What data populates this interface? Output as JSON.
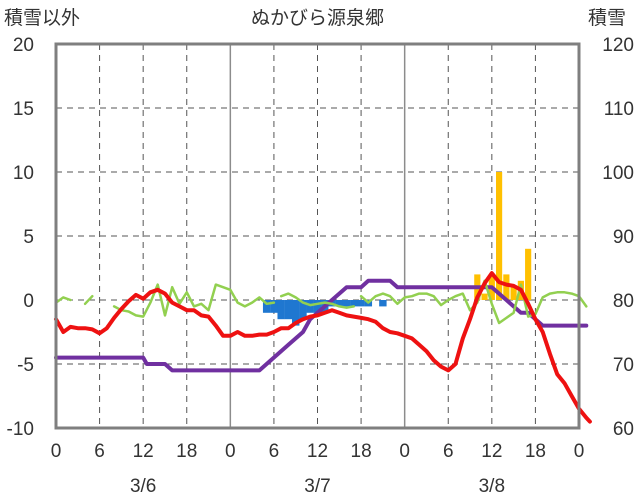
{
  "chart_data": {
    "type": "bar+line",
    "title": "ぬかびら源泉郷",
    "left_axis_label": "積雪以外",
    "right_axis_label": "積雪",
    "left_ylim": [
      -10,
      20
    ],
    "left_yticks": [
      "20",
      "15",
      "10",
      "5",
      "0",
      "-5",
      "-10"
    ],
    "right_ylim": [
      60,
      120
    ],
    "right_yticks": [
      "120",
      "110",
      "100",
      "90",
      "80",
      "70",
      "60"
    ],
    "x_range_hours": [
      0,
      72
    ],
    "x_tick_labels": [
      "0",
      "6",
      "12",
      "18",
      "0",
      "6",
      "12",
      "18",
      "0",
      "6",
      "12",
      "18",
      "0"
    ],
    "date_labels": [
      "3/6",
      "3/7",
      "3/8"
    ],
    "grid": true,
    "colors": {
      "temperature": "#ee1111",
      "wind": "#92d050",
      "snow_depth": "#7030a0",
      "precip_negative": "#1f77d0",
      "precip_positive": "#ffc000",
      "frame": "#7f7f7f",
      "grid": "#555555"
    },
    "series": [
      {
        "axis": "left",
        "kind": "line",
        "color_key": "temperature",
        "points": [
          [
            0,
            -1.5
          ],
          [
            1,
            -2.5
          ],
          [
            2,
            -2.1
          ],
          [
            3,
            -2.2
          ],
          [
            4,
            -2.2
          ],
          [
            5,
            -2.3
          ],
          [
            6,
            -2.6
          ],
          [
            7,
            -2.2
          ],
          [
            8,
            -1.4
          ],
          [
            9,
            -0.7
          ],
          [
            10,
            -0.1
          ],
          [
            11,
            0.4
          ],
          [
            12,
            0.1
          ],
          [
            13,
            0.6
          ],
          [
            14,
            0.8
          ],
          [
            15,
            0.5
          ],
          [
            16,
            -0.2
          ],
          [
            17,
            -0.5
          ],
          [
            18,
            -0.8
          ],
          [
            19,
            -0.8
          ],
          [
            20,
            -1.2
          ],
          [
            21,
            -1.3
          ],
          [
            22,
            -2.0
          ],
          [
            23,
            -2.8
          ],
          [
            24,
            -2.8
          ],
          [
            25,
            -2.5
          ],
          [
            26,
            -2.8
          ],
          [
            27,
            -2.8
          ],
          [
            28,
            -2.7
          ],
          [
            29,
            -2.7
          ],
          [
            30,
            -2.5
          ],
          [
            31,
            -2.2
          ],
          [
            32,
            -2.2
          ],
          [
            33,
            -1.8
          ],
          [
            34,
            -1.5
          ],
          [
            35,
            -1.3
          ],
          [
            36,
            -1.2
          ],
          [
            37,
            -1.0
          ],
          [
            38,
            -0.8
          ],
          [
            39,
            -1.0
          ],
          [
            40,
            -1.2
          ],
          [
            41,
            -1.3
          ],
          [
            42,
            -1.4
          ],
          [
            43,
            -1.5
          ],
          [
            44,
            -1.7
          ],
          [
            45,
            -2.2
          ],
          [
            46,
            -2.5
          ],
          [
            47,
            -2.6
          ],
          [
            48,
            -2.8
          ],
          [
            49,
            -3.0
          ],
          [
            50,
            -3.5
          ],
          [
            51,
            -4.0
          ],
          [
            52,
            -4.7
          ],
          [
            53,
            -5.2
          ],
          [
            54,
            -5.5
          ],
          [
            55,
            -5.0
          ],
          [
            56,
            -3.0
          ],
          [
            57,
            -1.5
          ],
          [
            58,
            0.2
          ],
          [
            59,
            1.3
          ],
          [
            60,
            2.1
          ],
          [
            61,
            1.4
          ],
          [
            62,
            1.2
          ],
          [
            63,
            1.1
          ],
          [
            64,
            0.8
          ],
          [
            65,
            -0.3
          ],
          [
            66,
            -1.5
          ],
          [
            67,
            -2.5
          ],
          [
            68,
            -4.2
          ],
          [
            69,
            -5.8
          ],
          [
            70,
            -6.5
          ],
          [
            71,
            -7.5
          ],
          [
            72,
            -8.5
          ],
          [
            73,
            -9.2
          ],
          [
            73.5,
            -9.5
          ]
        ]
      },
      {
        "axis": "left",
        "kind": "line",
        "color_key": "wind",
        "points": [
          [
            0,
            -0.2
          ],
          [
            1,
            0.2
          ],
          [
            2,
            0.0
          ],
          [
            null,
            null
          ],
          [
            4,
            -0.3
          ],
          [
            5,
            0.3
          ],
          [
            null,
            null
          ],
          [
            8,
            -0.5
          ],
          [
            9,
            -0.8
          ],
          [
            10,
            -0.9
          ],
          [
            11,
            -1.2
          ],
          [
            12,
            -1.3
          ],
          [
            13,
            -0.2
          ],
          [
            14,
            1.2
          ],
          [
            15,
            -1.2
          ],
          [
            16,
            1.0
          ],
          [
            17,
            -0.3
          ],
          [
            18,
            0.6
          ],
          [
            19,
            -0.5
          ],
          [
            20,
            -0.3
          ],
          [
            21,
            -0.8
          ],
          [
            22,
            1.2
          ],
          [
            23,
            1.0
          ],
          [
            24,
            0.8
          ],
          [
            25,
            -0.2
          ],
          [
            26,
            -0.5
          ],
          [
            27,
            -0.2
          ],
          [
            28,
            0.2
          ],
          [
            29,
            -0.3
          ],
          [
            30,
            -0.2
          ],
          [
            null,
            null
          ],
          [
            31,
            0.3
          ],
          [
            32,
            0.5
          ],
          [
            33,
            0.2
          ],
          [
            34,
            -0.2
          ],
          [
            35,
            -0.4
          ],
          [
            36,
            -0.3
          ],
          [
            37,
            -0.2
          ],
          [
            38,
            -0.3
          ],
          [
            39,
            -0.5
          ],
          [
            40,
            -0.6
          ],
          [
            41,
            -0.5
          ],
          [
            null,
            null
          ],
          [
            42,
            0.3
          ],
          [
            43,
            -0.2
          ],
          [
            44,
            0.3
          ],
          [
            45,
            0.5
          ],
          [
            46,
            0.3
          ],
          [
            47,
            -0.3
          ],
          [
            48,
            0.2
          ],
          [
            49,
            0.3
          ],
          [
            50,
            0.5
          ],
          [
            51,
            0.5
          ],
          [
            52,
            0.3
          ],
          [
            53,
            -0.4
          ],
          [
            54,
            0.0
          ],
          [
            55,
            0.3
          ],
          [
            56,
            0.5
          ],
          [
            57,
            -0.8
          ],
          [
            58,
            -0.2
          ],
          [
            59,
            1.5
          ],
          [
            60,
            -0.3
          ],
          [
            61,
            -1.8
          ],
          [
            62,
            -1.4
          ],
          [
            63,
            -1.0
          ],
          [
            64,
            1.2
          ],
          [
            65,
            -1.3
          ],
          [
            66,
            -1.1
          ],
          [
            67,
            0.2
          ],
          [
            68,
            0.5
          ],
          [
            69,
            0.6
          ],
          [
            70,
            0.6
          ],
          [
            71,
            0.5
          ],
          [
            72,
            0.3
          ],
          [
            73,
            -0.5
          ]
        ]
      },
      {
        "axis": "right",
        "kind": "line",
        "color_key": "snow_depth",
        "points": [
          [
            0,
            71
          ],
          [
            12,
            71
          ],
          [
            12.5,
            70
          ],
          [
            15,
            70
          ],
          [
            16,
            69
          ],
          [
            24,
            69
          ],
          [
            28,
            69
          ],
          [
            32,
            73
          ],
          [
            34,
            75
          ],
          [
            35,
            77
          ],
          [
            36,
            78
          ],
          [
            37,
            79
          ],
          [
            38,
            80
          ],
          [
            39,
            81
          ],
          [
            40,
            82
          ],
          [
            41,
            82
          ],
          [
            42,
            82
          ],
          [
            43,
            83
          ],
          [
            44,
            83
          ],
          [
            45,
            83
          ],
          [
            46,
            83
          ],
          [
            47,
            82
          ],
          [
            48,
            82
          ],
          [
            60,
            82
          ],
          [
            61,
            81
          ],
          [
            62,
            80
          ],
          [
            63,
            79
          ],
          [
            64,
            78
          ],
          [
            65,
            78
          ],
          [
            66,
            77
          ],
          [
            67,
            76
          ],
          [
            68,
            76
          ],
          [
            71,
            76
          ],
          [
            73,
            76
          ]
        ]
      },
      {
        "axis": "left",
        "kind": "bar",
        "color_key": "precip_negative",
        "bars": [
          [
            29,
            -1
          ],
          [
            30,
            -1
          ],
          [
            31,
            -1.5
          ],
          [
            32,
            -1.5
          ],
          [
            33,
            -2
          ],
          [
            34,
            -1.5
          ],
          [
            35,
            -1
          ],
          [
            36,
            -1
          ],
          [
            37,
            -1
          ],
          [
            38,
            -0.5
          ],
          [
            39,
            -0.5
          ],
          [
            40,
            -0.5
          ],
          [
            41,
            -0.5
          ],
          [
            42,
            -0.5
          ],
          [
            43,
            -0.5
          ],
          [
            45,
            -0.5
          ]
        ]
      },
      {
        "axis": "left",
        "kind": "bar",
        "color_key": "precip_positive",
        "bars": [
          [
            58,
            2
          ],
          [
            59,
            0.5
          ],
          [
            60,
            2
          ],
          [
            61,
            10
          ],
          [
            62,
            2
          ],
          [
            63,
            1
          ],
          [
            64,
            1.5
          ],
          [
            65,
            4
          ]
        ]
      }
    ]
  }
}
